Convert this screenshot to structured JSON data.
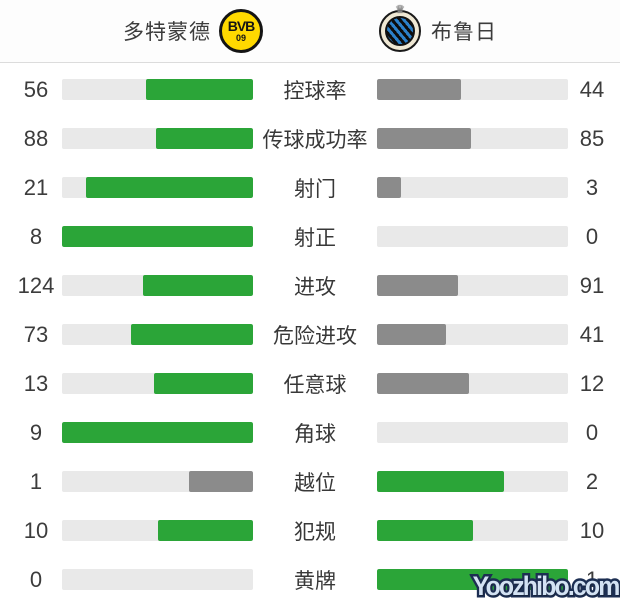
{
  "header": {
    "home": {
      "name": "多特蒙德",
      "logo_text": "BVB",
      "logo_sub": "09"
    },
    "away": {
      "name": "布鲁日"
    }
  },
  "icons": {
    "crown": "♛"
  },
  "colors": {
    "green": "#2ba538",
    "gray": "#8b8b8b",
    "track": "#e9e9e9"
  },
  "chart_data": {
    "type": "bar",
    "layout": "mirrored-comparison",
    "teams": [
      "多特蒙德",
      "布鲁日"
    ],
    "categories": [
      "控球率",
      "传球成功率",
      "射门",
      "射正",
      "进攻",
      "危险进攻",
      "任意球",
      "角球",
      "越位",
      "犯规",
      "黄牌"
    ],
    "series": [
      {
        "name": "多特蒙德",
        "values": [
          56,
          88,
          21,
          8,
          124,
          73,
          13,
          9,
          1,
          10,
          0
        ]
      },
      {
        "name": "布鲁日",
        "values": [
          44,
          85,
          3,
          0,
          91,
          41,
          12,
          0,
          2,
          10,
          1
        ]
      }
    ],
    "bar_rule": "fill = value / (home + away), anchored toward center; higher value green, lower gray, tie both green"
  },
  "stats": {
    "rows": [
      {
        "label": "控球率",
        "home": 56,
        "away": 44
      },
      {
        "label": "传球成功率",
        "home": 88,
        "away": 85
      },
      {
        "label": "射门",
        "home": 21,
        "away": 3
      },
      {
        "label": "射正",
        "home": 8,
        "away": 0
      },
      {
        "label": "进攻",
        "home": 124,
        "away": 91
      },
      {
        "label": "危险进攻",
        "home": 73,
        "away": 41
      },
      {
        "label": "任意球",
        "home": 13,
        "away": 12
      },
      {
        "label": "角球",
        "home": 9,
        "away": 0
      },
      {
        "label": "越位",
        "home": 1,
        "away": 2
      },
      {
        "label": "犯规",
        "home": 10,
        "away": 10
      },
      {
        "label": "黄牌",
        "home": 0,
        "away": 1
      }
    ]
  },
  "watermark": {
    "text": "Yoozhibo.com"
  }
}
